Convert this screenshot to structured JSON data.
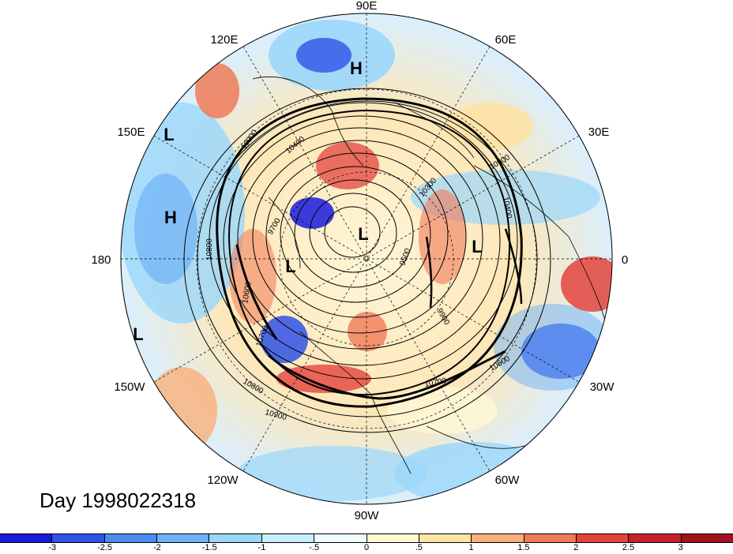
{
  "title": "Day 1998022318",
  "longitude_labels": [
    "90E",
    "120E",
    "60E",
    "150E",
    "30E",
    "180",
    "0",
    "150W",
    "30W",
    "120W",
    "60W",
    "90W"
  ],
  "pressure_system_labels": [
    "H",
    "L",
    "H",
    "L",
    "L",
    "L",
    "L"
  ],
  "contour_labels": [
    "10900",
    "10400",
    "10300",
    "10900",
    "10400",
    "9700",
    "9500",
    "9900",
    "10800",
    "10600",
    "10700",
    "10800",
    "10900",
    "10700",
    "10600"
  ],
  "colorbar": {
    "tick_labels": [
      "-3",
      "-2.5",
      "-2",
      "-1.5",
      "-1",
      "-.5",
      "0",
      ".5",
      "1",
      "1.5",
      "2",
      "2.5",
      "3"
    ],
    "colors": [
      "#1a1adc",
      "#2f52e6",
      "#4a8cf0",
      "#6fb2f6",
      "#9ad7fb",
      "#c7f0fe",
      "#eefcff",
      "#fff8d4",
      "#fde3a4",
      "#f9b07a",
      "#f07a58",
      "#e3443c",
      "#c8202c",
      "#a0121e"
    ]
  }
}
